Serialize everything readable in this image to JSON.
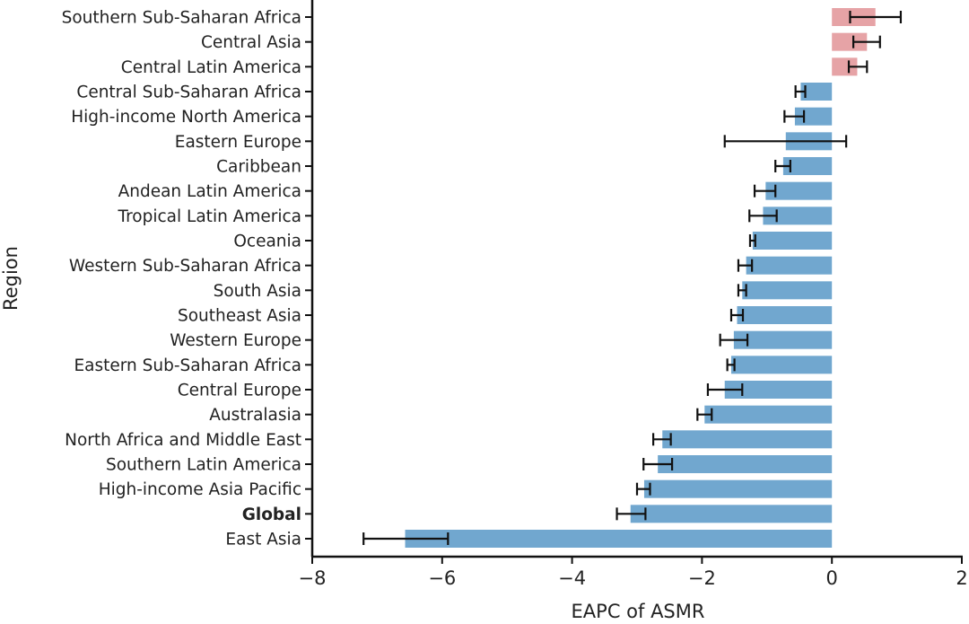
{
  "chart_data": {
    "type": "bar",
    "orientation": "horizontal",
    "title": "",
    "xlabel": "EAPC of ASMR",
    "ylabel": "Region",
    "xlim": [
      -8,
      2
    ],
    "xticks": [
      -8,
      -6,
      -4,
      -2,
      0,
      2
    ],
    "xtick_labels": [
      "−8",
      "−6",
      "−4",
      "−2",
      "0",
      "2"
    ],
    "grid": false,
    "colors": {
      "positive": "#e6a3a6",
      "negative": "#71a7cf",
      "error": "#111111",
      "axis": "#111111"
    },
    "categories": [
      "Southern Sub-Saharan Africa",
      "Central Asia",
      "Central Latin America",
      "Central Sub-Saharan Africa",
      "High-income North America",
      "Eastern Europe",
      "Caribbean",
      "Andean Latin America",
      "Tropical Latin America",
      "Oceania",
      "Western Sub-Saharan Africa",
      "South Asia",
      "Southeast Asia",
      "Western Europe",
      "Eastern Sub-Saharan Africa",
      "Central Europe",
      "Australasia",
      "North Africa and Middle East",
      "Southern Latin America",
      "High-income Asia Pacific",
      "Global",
      "East Asia"
    ],
    "bold_categories": [
      "Global"
    ],
    "values": [
      0.67,
      0.54,
      0.39,
      -0.48,
      -0.57,
      -0.71,
      -0.75,
      -1.02,
      -1.06,
      -1.22,
      -1.32,
      -1.38,
      -1.46,
      -1.51,
      -1.55,
      -1.65,
      -1.96,
      -2.61,
      -2.68,
      -2.89,
      -3.1,
      -6.57
    ],
    "ci_lower": [
      0.28,
      0.33,
      0.26,
      -0.56,
      -0.73,
      -1.65,
      -0.87,
      -1.19,
      -1.27,
      -1.26,
      -1.44,
      -1.44,
      -1.55,
      -1.72,
      -1.61,
      -1.91,
      -2.07,
      -2.75,
      -2.9,
      -3.0,
      -3.31,
      -7.21
    ],
    "ci_upper": [
      1.06,
      0.74,
      0.54,
      -0.41,
      -0.43,
      0.22,
      -0.64,
      -0.87,
      -0.85,
      -1.18,
      -1.23,
      -1.32,
      -1.37,
      -1.3,
      -1.5,
      -1.38,
      -1.85,
      -2.48,
      -2.46,
      -2.8,
      -2.87,
      -5.91
    ]
  }
}
